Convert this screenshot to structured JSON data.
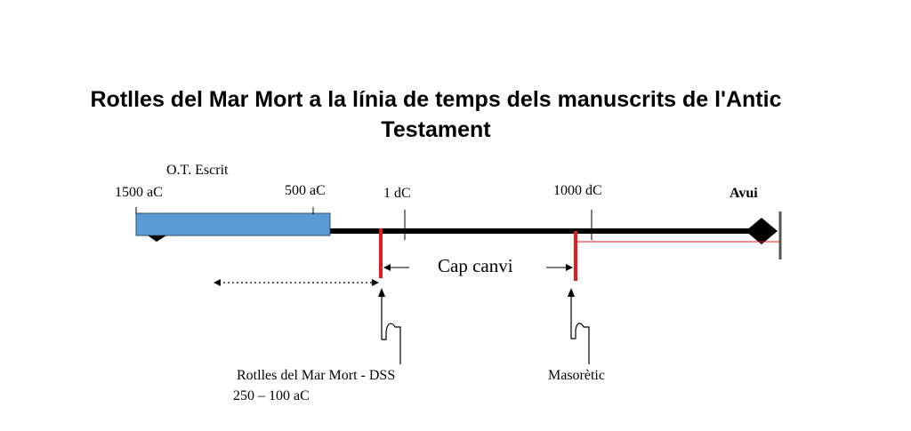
{
  "title": "Rotlles del Mar Mort a la línia de temps dels manuscrits de l'Antic Testament",
  "labels": {
    "ot_written": "O.T. Escrit",
    "bc_1500": "1500 aC",
    "bc_500": "500 aC",
    "ad_1": "1 dC",
    "ad_1000": "1000 dC",
    "today": "Avui",
    "no_change": "Cap canvi",
    "dss": "Rotlles del Mar Mort - DSS",
    "dss_dates": "250 – 100 aC",
    "masoretic": "Masorètic"
  },
  "colors": {
    "ot_bar": "#5b9bd5",
    "ot_bar_border": "#2f4f6f",
    "timeline": "#000000",
    "marker": "#e41b1b"
  }
}
